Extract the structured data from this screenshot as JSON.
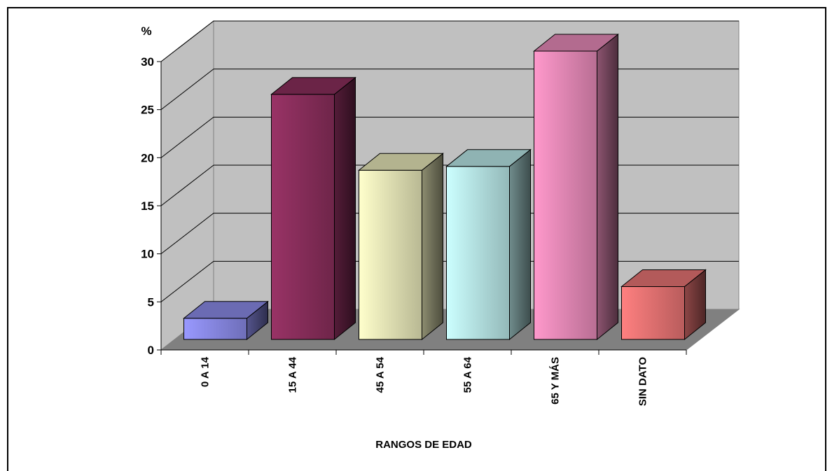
{
  "chart_data": {
    "type": "bar",
    "categories": [
      "0 A 14",
      "15 A 44",
      "45 A 54",
      "55 A 64",
      "65 Y MÁS",
      "SIN DATO"
    ],
    "values": [
      2.2,
      25.5,
      17.6,
      18.0,
      30.0,
      5.5
    ],
    "ylabel": "%",
    "xlabel": "RANGOS DE EDAD",
    "ylim": [
      0,
      30
    ],
    "yticks": [
      0,
      5,
      10,
      15,
      20,
      25,
      30
    ],
    "grid": true,
    "legend": "none",
    "style": "3d",
    "colors": [
      "#9999ff",
      "#993366",
      "#ffffcc",
      "#ccffff",
      "#ff99cc",
      "#ff8080"
    ]
  }
}
